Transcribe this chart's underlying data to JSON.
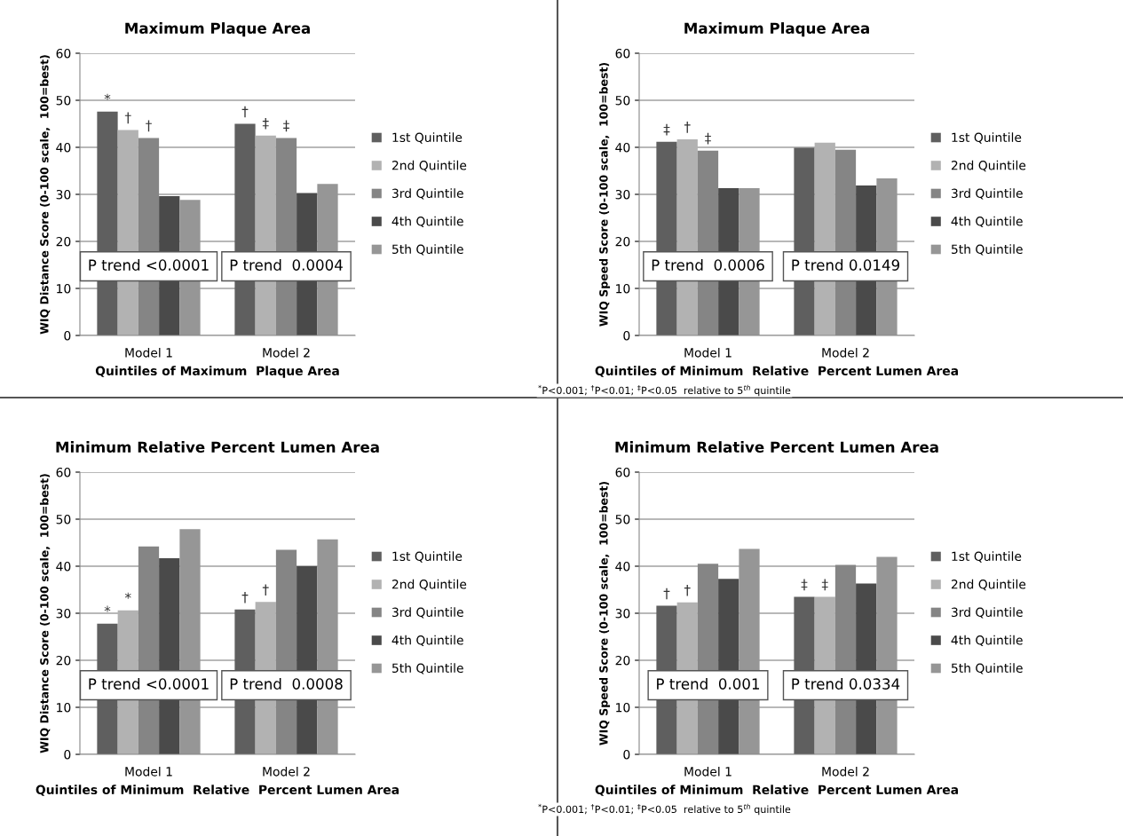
{
  "chart_data": [
    {
      "type": "bar",
      "title": "Maximum Plaque Area",
      "xlabel": "Quintiles of Maximum  Plaque Area",
      "ylabel": "WIQ Distance Score (0-100 scale,  100=best)",
      "categories": [
        "Model 1",
        "Model 2"
      ],
      "ylim": [
        0,
        60
      ],
      "yticks": [
        0,
        10,
        20,
        30,
        40,
        50,
        60
      ],
      "grid": "y",
      "legend": "right",
      "series": [
        {
          "name": "1st Quintile",
          "color": "#5f5f5f",
          "values": [
            47.6,
            45.0
          ],
          "value_labels": [
            "*",
            "†"
          ]
        },
        {
          "name": "2nd Quintile",
          "color": "#b2b2b2",
          "values": [
            43.7,
            42.5
          ],
          "value_labels": [
            "†",
            "‡"
          ]
        },
        {
          "name": "3rd Quintile",
          "color": "#858585",
          "values": [
            42.0,
            42.0
          ],
          "value_labels": [
            "†",
            "‡"
          ]
        },
        {
          "name": "4th Quintile",
          "color": "#4a4a4a",
          "values": [
            29.6,
            30.3
          ]
        },
        {
          "name": "5th Quintile",
          "color": "#969696",
          "values": [
            28.8,
            32.2
          ]
        }
      ],
      "annotations": [
        "P trend <0.0001",
        "P trend  0.0004"
      ]
    },
    {
      "type": "bar",
      "title": "Maximum Plaque Area",
      "xlabel": "Quintiles of Minimum  Relative  Percent Lumen Area",
      "ylabel": "WIQ Speed Score (0-100 scale,  100=best)",
      "categories": [
        "Model 1",
        "Model 2"
      ],
      "ylim": [
        0,
        60
      ],
      "yticks": [
        0,
        10,
        20,
        30,
        40,
        50,
        60
      ],
      "grid": "y",
      "legend": "right",
      "series": [
        {
          "name": "1st Quintile",
          "color": "#5f5f5f",
          "values": [
            41.2,
            39.9
          ],
          "value_labels": [
            "‡",
            null
          ]
        },
        {
          "name": "2nd Quintile",
          "color": "#b2b2b2",
          "values": [
            41.7,
            41.0
          ],
          "value_labels": [
            "†",
            null
          ]
        },
        {
          "name": "3rd Quintile",
          "color": "#858585",
          "values": [
            39.3,
            39.5
          ],
          "value_labels": [
            "‡",
            null
          ]
        },
        {
          "name": "4th Quintile",
          "color": "#4a4a4a",
          "values": [
            31.3,
            31.9
          ]
        },
        {
          "name": "5th Quintile",
          "color": "#969696",
          "values": [
            31.3,
            33.4
          ]
        }
      ],
      "annotations": [
        "P trend  0.0006",
        "P trend 0.0149",
        "$^{*}$P<0.001; $^{†}$P<0.01; $^{‡}$P<0.05  relative to 5$^{th}$ quintile"
      ]
    },
    {
      "type": "bar",
      "title": "Minimum Relative Percent Lumen Area",
      "xlabel": "Quintiles of Minimum  Relative  Percent Lumen Area",
      "ylabel": "WIQ Distance Score (0-100 scale,  100=best)",
      "categories": [
        "Model 1",
        "Model 2"
      ],
      "ylim": [
        0,
        60
      ],
      "yticks": [
        0,
        10,
        20,
        30,
        40,
        50,
        60
      ],
      "grid": "y",
      "legend": "right",
      "series": [
        {
          "name": "1st Quintile",
          "color": "#5f5f5f",
          "values": [
            27.8,
            30.8
          ],
          "value_labels": [
            "*",
            "†"
          ]
        },
        {
          "name": "2nd Quintile",
          "color": "#b2b2b2",
          "values": [
            30.6,
            32.4
          ],
          "value_labels": [
            "*",
            "†"
          ]
        },
        {
          "name": "3rd Quintile",
          "color": "#858585",
          "values": [
            44.2,
            43.5
          ]
        },
        {
          "name": "4th Quintile",
          "color": "#4a4a4a",
          "values": [
            41.7,
            40.0
          ]
        },
        {
          "name": "5th Quintile",
          "color": "#969696",
          "values": [
            47.9,
            45.7
          ]
        }
      ],
      "annotations": [
        "P trend <0.0001",
        "P trend  0.0008"
      ]
    },
    {
      "type": "bar",
      "title": "Minimum Relative Percent Lumen Area",
      "xlabel": "Quintiles of Minimum  Relative  Percent Lumen Area",
      "ylabel": "WIQ Speed Score (0-100 scale,  100=best)",
      "categories": [
        "Model 1",
        "Model 2"
      ],
      "ylim": [
        0,
        60
      ],
      "yticks": [
        0,
        10,
        20,
        30,
        40,
        50,
        60
      ],
      "grid": "y",
      "legend": "right",
      "series": [
        {
          "name": "1st Quintile",
          "color": "#5f5f5f",
          "values": [
            31.6,
            33.5
          ],
          "value_labels": [
            "†",
            "‡"
          ]
        },
        {
          "name": "2nd Quintile",
          "color": "#b2b2b2",
          "values": [
            32.3,
            33.5
          ],
          "value_labels": [
            "†",
            "‡"
          ]
        },
        {
          "name": "3rd Quintile",
          "color": "#858585",
          "values": [
            40.5,
            40.3
          ]
        },
        {
          "name": "4th Quintile",
          "color": "#4a4a4a",
          "values": [
            37.3,
            36.3
          ]
        },
        {
          "name": "5th Quintile",
          "color": "#969696",
          "values": [
            43.7,
            42.0
          ]
        }
      ],
      "annotations": [
        "P trend  0.001",
        "P trend 0.0334",
        "$^{*}$P<0.001; $^{†}$P<0.01; $^{‡}$P<0.05  relative to 5$^{th}$ quintile"
      ]
    }
  ]
}
